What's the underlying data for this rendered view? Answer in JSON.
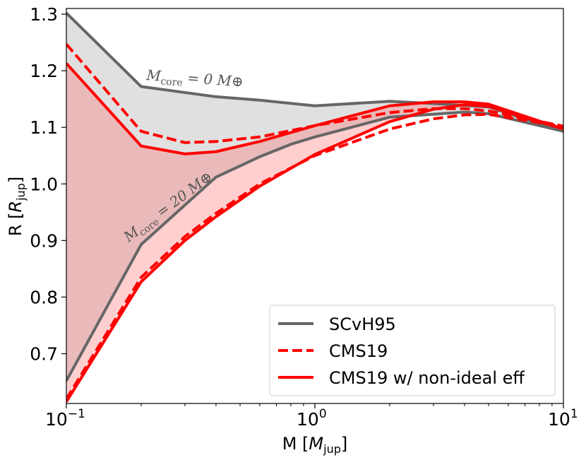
{
  "chart_data": {
    "type": "line",
    "xscale": "log",
    "xlim": [
      0.1,
      10
    ],
    "ylim": [
      0.612,
      1.31
    ],
    "xlabel": "M [M_jup]",
    "ylabel": "R [R_jup]",
    "x_ticks": [
      {
        "value": 0.1,
        "base": "10",
        "exp": "−1"
      },
      {
        "value": 1,
        "base": "10",
        "exp": "0"
      },
      {
        "value": 10,
        "base": "10",
        "exp": "1"
      }
    ],
    "y_ticks": [
      0.7,
      0.8,
      0.9,
      1.0,
      1.1,
      1.2,
      1.3
    ],
    "legend_position": "lower-right",
    "series": [
      {
        "key": "scvh_0",
        "name": "SCvH95",
        "style": "solid",
        "color": "#666666",
        "x": [
          0.1,
          0.2,
          0.4,
          0.6,
          1.0,
          2.0,
          3.0,
          5.0,
          10.0
        ],
        "y": [
          1.302,
          1.172,
          1.154,
          1.148,
          1.138,
          1.146,
          1.142,
          1.136,
          1.093
        ]
      },
      {
        "key": "scvh_20",
        "name": "SCvH95 (20 M⊕ core)",
        "style": "solid",
        "color": "#666666",
        "x": [
          0.1,
          0.2,
          0.4,
          0.6,
          0.8,
          1.0,
          2.0,
          3.0,
          4.0,
          5.0,
          10.0
        ],
        "y": [
          0.652,
          0.893,
          1.012,
          1.048,
          1.07,
          1.083,
          1.118,
          1.123,
          1.127,
          1.124,
          1.093
        ]
      },
      {
        "key": "cms_0",
        "name": "CMS19",
        "style": "dashed",
        "color": "#ff0000",
        "x": [
          0.1,
          0.2,
          0.3,
          0.4,
          0.6,
          1.0,
          2.0,
          3.0,
          4.0,
          5.0,
          10.0
        ],
        "y": [
          1.247,
          1.093,
          1.073,
          1.075,
          1.083,
          1.103,
          1.126,
          1.133,
          1.133,
          1.129,
          1.102
        ]
      },
      {
        "key": "cms_20",
        "name": "CMS19 (20 M⊕ core)",
        "style": "dashed",
        "color": "#ff0000",
        "x": [
          0.1,
          0.2,
          0.3,
          0.4,
          0.6,
          1.0,
          2.0,
          3.0,
          4.0,
          5.0,
          10.0
        ],
        "y": [
          0.62,
          0.835,
          0.907,
          0.948,
          1.0,
          1.05,
          1.097,
          1.115,
          1.122,
          1.123,
          1.101
        ]
      },
      {
        "key": "cmsni_0",
        "name": "CMS19 w/ non-ideal eff",
        "style": "solid",
        "color": "#ff0000",
        "x": [
          0.1,
          0.2,
          0.3,
          0.4,
          0.6,
          1.0,
          2.0,
          3.0,
          4.0,
          5.0,
          10.0
        ],
        "y": [
          1.213,
          1.067,
          1.053,
          1.057,
          1.075,
          1.103,
          1.138,
          1.145,
          1.145,
          1.141,
          1.097
        ]
      },
      {
        "key": "cmsni_20",
        "name": "CMS19 w/ non-ideal eff (20 M⊕ core)",
        "style": "solid",
        "color": "#ff0000",
        "x": [
          0.1,
          0.2,
          0.3,
          0.4,
          0.6,
          1.0,
          2.0,
          3.0,
          4.0,
          5.0,
          10.0
        ],
        "y": [
          0.615,
          0.827,
          0.9,
          0.942,
          0.996,
          1.052,
          1.11,
          1.132,
          1.14,
          1.137,
          1.097
        ]
      }
    ],
    "fills": [
      {
        "between": [
          "scvh_0",
          "scvh_20"
        ],
        "color": "#e0e0e0"
      },
      {
        "between": [
          "cmsni_0",
          "cmsni_20"
        ],
        "color": "#ff6a6a",
        "alpha": 0.32
      }
    ],
    "legend": [
      {
        "label": "SCvH95",
        "style": "solid",
        "color": "#666666"
      },
      {
        "label": "CMS19",
        "style": "dashed",
        "color": "#ff0000"
      },
      {
        "label": "CMS19 w/ non-ideal eff",
        "style": "solid",
        "color": "#ff0000"
      }
    ],
    "annotations": [
      {
        "key": "top",
        "main": "M",
        "sub": "core",
        "rest": " = 0 M",
        "symbol": "⊕"
      },
      {
        "key": "bottom",
        "main": "M",
        "sub": "core",
        "rest": " = 20 M",
        "symbol": "⊕"
      }
    ]
  }
}
